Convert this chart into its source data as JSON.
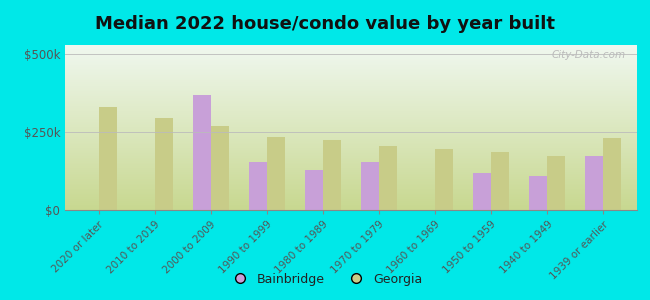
{
  "title": "Median 2022 house/condo value by year built",
  "categories": [
    "2020 or later",
    "2010 to 2019",
    "2000 to 2009",
    "1990 to 1999",
    "1980 to 1989",
    "1970 to 1979",
    "1960 to 1969",
    "1950 to 1959",
    "1940 to 1949",
    "1939 or earlier"
  ],
  "bainbridge": [
    null,
    null,
    370000,
    155000,
    130000,
    155000,
    null,
    120000,
    110000,
    175000
  ],
  "georgia": [
    330000,
    295000,
    270000,
    235000,
    225000,
    205000,
    195000,
    185000,
    175000,
    230000
  ],
  "bar_color_bainbridge": "#c8a0d8",
  "bar_color_georgia": "#c8cc88",
  "background_outer": "#00e8e8",
  "background_inner_bottom": "#c8d890",
  "background_inner_top": "#f0f8f0",
  "yticks": [
    0,
    250000,
    500000
  ],
  "ytick_labels": [
    "$0",
    "$250k",
    "$500k"
  ],
  "ylim": [
    0,
    530000
  ],
  "title_fontsize": 13,
  "legend_labels": [
    "Bainbridge",
    "Georgia"
  ],
  "watermark": "City-Data.com"
}
